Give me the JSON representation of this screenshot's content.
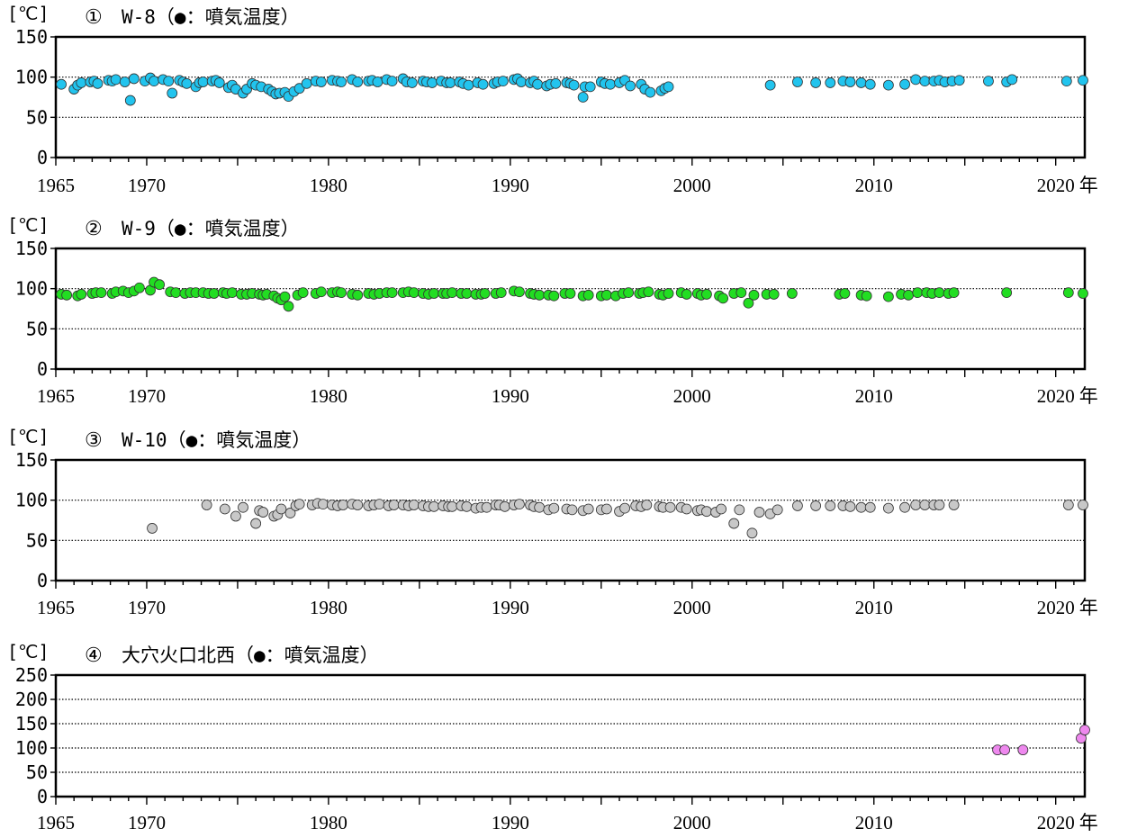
{
  "chart_data": [
    {
      "type": "scatter",
      "title_num": "①",
      "title": "W-8（●：噴気温度）",
      "unit": "[℃]",
      "x_unit": "年",
      "xlim": [
        1965,
        2021.6
      ],
      "ylim": [
        0,
        150
      ],
      "yticks": [
        "150",
        "100",
        "50",
        "0"
      ],
      "xticks": [
        "1965",
        "1970",
        "1980",
        "1990",
        "2000",
        "2010",
        "2020"
      ],
      "grid_y": [
        50,
        100
      ],
      "color": "#22c4ee",
      "series": [
        {
          "x": [
            1965.3,
            1966.0,
            1966.2,
            1966.4,
            1966.9,
            1967.1,
            1967.3,
            1967.9,
            1968.1,
            1968.3,
            1968.8,
            1969.1,
            1969.3,
            1969.9,
            1970.2,
            1970.4,
            1970.9,
            1971.2,
            1971.4,
            1971.8,
            1972.0,
            1972.2,
            1972.7,
            1972.9,
            1973.1,
            1973.6,
            1973.8,
            1974.0,
            1974.5,
            1974.7,
            1974.9,
            1975.3,
            1975.5,
            1975.8,
            1976.0,
            1976.3,
            1976.7,
            1976.9,
            1977.1,
            1977.3,
            1977.6,
            1977.8,
            1978.1,
            1978.4,
            1978.8,
            1979.3,
            1979.6,
            1980.2,
            1980.5,
            1980.7,
            1981.3,
            1981.6,
            1982.2,
            1982.4,
            1982.7,
            1983.2,
            1983.5,
            1984.1,
            1984.3,
            1984.6,
            1985.2,
            1985.4,
            1985.7,
            1986.2,
            1986.5,
            1986.7,
            1987.2,
            1987.4,
            1987.7,
            1988.2,
            1988.5,
            1989.1,
            1989.3,
            1989.6,
            1990.2,
            1990.4,
            1990.6,
            1991.1,
            1991.3,
            1991.5,
            1992.0,
            1992.2,
            1992.5,
            1993.1,
            1993.3,
            1993.5,
            1994.0,
            1994.1,
            1994.4,
            1995.0,
            1995.2,
            1995.5,
            1996.0,
            1996.3,
            1996.6,
            1997.2,
            1997.4,
            1997.7,
            1998.3,
            1998.5,
            1998.7,
            2004.3,
            2005.8,
            2006.8,
            2007.6,
            2008.3,
            2008.7,
            2009.3,
            2009.8,
            2010.8,
            2011.7,
            2012.3,
            2012.8,
            2013.3,
            2013.6,
            2013.9,
            2014.3,
            2014.7,
            2016.3,
            2017.3,
            2017.6,
            2020.6,
            2021.5
          ],
          "y": [
            91,
            85,
            90,
            93,
            94,
            95,
            92,
            96,
            95,
            97,
            94,
            71,
            98,
            95,
            99,
            95,
            97,
            95,
            80,
            96,
            94,
            92,
            88,
            93,
            94,
            95,
            96,
            93,
            87,
            90,
            85,
            80,
            85,
            92,
            90,
            88,
            85,
            82,
            79,
            80,
            81,
            76,
            82,
            86,
            92,
            95,
            94,
            96,
            95,
            94,
            97,
            94,
            95,
            96,
            94,
            97,
            95,
            98,
            94,
            93,
            95,
            94,
            93,
            95,
            93,
            93,
            94,
            92,
            90,
            93,
            91,
            92,
            94,
            95,
            97,
            98,
            94,
            93,
            95,
            91,
            89,
            91,
            92,
            93,
            92,
            90,
            75,
            88,
            88,
            94,
            92,
            91,
            93,
            96,
            89,
            91,
            85,
            81,
            83,
            86,
            88,
            90,
            94,
            93,
            93,
            95,
            94,
            93,
            91,
            90,
            91,
            97,
            95,
            95,
            96,
            94,
            95,
            96,
            95,
            94,
            97,
            95,
            96
          ]
        }
      ]
    },
    {
      "type": "scatter",
      "title_num": "②",
      "title": "W-9（●：噴気温度）",
      "unit": "[℃]",
      "x_unit": "年",
      "xlim": [
        1965,
        2021.6
      ],
      "ylim": [
        0,
        150
      ],
      "yticks": [
        "150",
        "100",
        "50",
        "0"
      ],
      "xticks": [
        "1965",
        "1970",
        "1980",
        "1990",
        "2000",
        "2010",
        "2020"
      ],
      "grid_y": [
        50,
        100
      ],
      "color": "#22dd22",
      "series": [
        {
          "x": [
            1965.3,
            1965.6,
            1966.2,
            1966.4,
            1967.0,
            1967.2,
            1967.5,
            1968.1,
            1968.3,
            1968.7,
            1969.0,
            1969.3,
            1969.6,
            1970.2,
            1970.4,
            1970.7,
            1971.3,
            1971.6,
            1972.1,
            1972.4,
            1972.7,
            1973.1,
            1973.4,
            1973.7,
            1974.2,
            1974.4,
            1974.7,
            1975.2,
            1975.5,
            1975.8,
            1976.2,
            1976.4,
            1976.6,
            1977.0,
            1977.2,
            1977.4,
            1977.6,
            1977.8,
            1978.3,
            1978.6,
            1979.3,
            1979.6,
            1980.2,
            1980.5,
            1980.7,
            1981.3,
            1981.6,
            1982.2,
            1982.5,
            1982.8,
            1983.2,
            1983.5,
            1984.1,
            1984.4,
            1984.7,
            1985.2,
            1985.5,
            1985.8,
            1986.3,
            1986.5,
            1986.8,
            1987.3,
            1987.6,
            1988.1,
            1988.4,
            1988.6,
            1989.2,
            1989.5,
            1990.2,
            1990.5,
            1991.1,
            1991.3,
            1991.6,
            1992.1,
            1992.4,
            1993.0,
            1993.3,
            1994.0,
            1994.3,
            1995.0,
            1995.3,
            1995.8,
            1996.2,
            1996.5,
            1997.1,
            1997.3,
            1997.6,
            1998.2,
            1998.4,
            1998.7,
            1999.4,
            1999.7,
            2000.3,
            2000.5,
            2000.8,
            2001.5,
            2001.7,
            2002.3,
            2002.7,
            2003.1,
            2003.4,
            2004.1,
            2004.5,
            2005.5,
            2008.1,
            2008.4,
            2009.3,
            2009.6,
            2010.8,
            2011.5,
            2011.9,
            2012.4,
            2012.9,
            2013.2,
            2013.6,
            2014.1,
            2014.4,
            2017.3,
            2020.7,
            2021.5
          ],
          "y": [
            93,
            92,
            91,
            93,
            94,
            95,
            95,
            94,
            96,
            97,
            95,
            97,
            101,
            98,
            108,
            105,
            96,
            95,
            94,
            95,
            95,
            95,
            94,
            94,
            95,
            94,
            95,
            93,
            93,
            94,
            93,
            92,
            93,
            91,
            88,
            86,
            90,
            78,
            92,
            95,
            94,
            96,
            95,
            96,
            95,
            93,
            92,
            94,
            93,
            94,
            95,
            95,
            95,
            96,
            95,
            94,
            93,
            94,
            94,
            94,
            95,
            94,
            94,
            93,
            93,
            94,
            94,
            95,
            97,
            96,
            94,
            93,
            92,
            92,
            91,
            94,
            94,
            91,
            92,
            91,
            92,
            91,
            94,
            95,
            94,
            95,
            96,
            93,
            92,
            94,
            95,
            93,
            94,
            92,
            93,
            91,
            88,
            94,
            95,
            82,
            92,
            93,
            93,
            94,
            93,
            94,
            92,
            91,
            90,
            93,
            92,
            95,
            95,
            94,
            95,
            94,
            95,
            95,
            95,
            94
          ]
        }
      ]
    },
    {
      "type": "scatter",
      "title_num": "③",
      "title": "W-10（●：噴気温度）",
      "unit": "[℃]",
      "x_unit": "年",
      "xlim": [
        1965,
        2021.6
      ],
      "ylim": [
        0,
        150
      ],
      "yticks": [
        "150",
        "100",
        "50",
        "0"
      ],
      "xticks": [
        "1965",
        "1970",
        "1980",
        "1990",
        "2000",
        "2010",
        "2020"
      ],
      "grid_y": [
        50,
        100
      ],
      "color": "#c8c8c8",
      "series": [
        {
          "x": [
            1970.3,
            1973.3,
            1974.3,
            1974.9,
            1975.3,
            1976.0,
            1976.2,
            1976.4,
            1977.0,
            1977.2,
            1977.4,
            1977.9,
            1978.2,
            1978.4,
            1979.1,
            1979.4,
            1979.7,
            1980.2,
            1980.5,
            1980.8,
            1981.3,
            1981.6,
            1982.2,
            1982.5,
            1982.8,
            1983.3,
            1983.6,
            1984.1,
            1984.4,
            1984.7,
            1985.2,
            1985.5,
            1985.8,
            1986.3,
            1986.6,
            1986.8,
            1987.3,
            1987.6,
            1988.1,
            1988.4,
            1988.7,
            1989.2,
            1989.4,
            1989.7,
            1990.2,
            1990.5,
            1991.1,
            1991.3,
            1991.6,
            1992.1,
            1992.4,
            1993.1,
            1993.4,
            1994.0,
            1994.3,
            1995.0,
            1995.3,
            1996.0,
            1996.3,
            1996.9,
            1997.2,
            1997.5,
            1998.2,
            1998.4,
            1998.8,
            1999.4,
            1999.7,
            2000.3,
            2000.5,
            2000.8,
            2001.3,
            2001.6,
            2002.3,
            2002.6,
            2003.3,
            2003.7,
            2004.3,
            2004.7,
            2005.8,
            2006.8,
            2007.6,
            2008.3,
            2008.7,
            2009.3,
            2009.8,
            2010.8,
            2011.7,
            2012.3,
            2012.8,
            2013.3,
            2013.6,
            2014.4,
            2020.7,
            2021.5
          ],
          "y": [
            65,
            94,
            89,
            80,
            91,
            71,
            87,
            85,
            80,
            82,
            89,
            84,
            93,
            95,
            94,
            96,
            95,
            94,
            93,
            94,
            95,
            94,
            93,
            94,
            95,
            93,
            94,
            94,
            93,
            94,
            93,
            92,
            92,
            93,
            92,
            92,
            93,
            92,
            90,
            91,
            91,
            94,
            94,
            92,
            94,
            95,
            94,
            92,
            91,
            88,
            90,
            89,
            88,
            87,
            89,
            88,
            89,
            86,
            90,
            93,
            92,
            94,
            92,
            91,
            91,
            91,
            89,
            87,
            88,
            86,
            85,
            89,
            71,
            88,
            59,
            85,
            83,
            88,
            93,
            93,
            93,
            93,
            92,
            91,
            91,
            90,
            91,
            94,
            94,
            94,
            94,
            94,
            94,
            94
          ]
        }
      ]
    },
    {
      "type": "scatter",
      "title_num": "④",
      "title": "大穴火口北西（●：噴気温度）",
      "unit": "[℃]",
      "x_unit": "年",
      "xlim": [
        1965,
        2021.6
      ],
      "ylim": [
        0,
        250
      ],
      "yticks": [
        "250",
        "200",
        "150",
        "100",
        "50",
        "0"
      ],
      "xticks": [
        "1965",
        "1970",
        "1980",
        "1990",
        "2000",
        "2010",
        "2020"
      ],
      "grid_y": [
        50,
        100,
        150,
        200
      ],
      "color": "#ee88ee",
      "series": [
        {
          "x": [
            2016.8,
            2017.2,
            2018.2,
            2021.4,
            2021.6
          ],
          "y": [
            96,
            96,
            96,
            120,
            137
          ]
        }
      ]
    }
  ]
}
